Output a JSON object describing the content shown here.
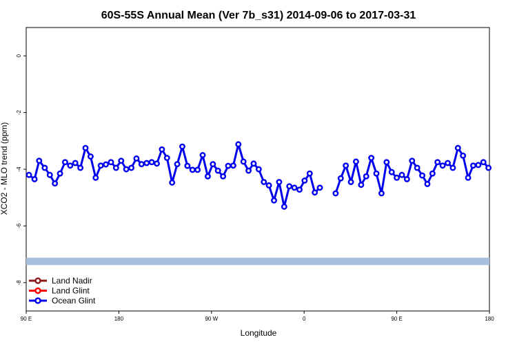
{
  "chart_data": {
    "type": "line",
    "title": "60S-55S Annual Mean (Ver 7b_s31)   2014-09-06 to 2017-03-31",
    "xlabel": "Longitude",
    "ylabel": "XCO2 - MLO trend (ppm)",
    "xlim": [
      0,
      100
    ],
    "ylim": [
      -9,
      1
    ],
    "x_ticks": [
      {
        "pos": 0,
        "label": "90 E"
      },
      {
        "pos": 20,
        "label": "180"
      },
      {
        "pos": 40,
        "label": "90 W"
      },
      {
        "pos": 60,
        "label": "0"
      },
      {
        "pos": 80,
        "label": "90 E"
      },
      {
        "pos": 100,
        "label": "180"
      }
    ],
    "y_ticks": [
      0,
      -2,
      -4,
      -6,
      -8
    ],
    "band": {
      "y_low": -7.38,
      "y_high": -7.12,
      "color": "#a8bfe0"
    },
    "legend_position": "bottom-left",
    "series": [
      {
        "name": "Land Nadir",
        "color": "#8b1a1a",
        "values": []
      },
      {
        "name": "Land Glint",
        "color": "#ff0000",
        "values": []
      },
      {
        "name": "Ocean Glint",
        "color": "#0000ee",
        "segments": [
          [
            [
              0.6,
              -4.2
            ],
            [
              1.8,
              -4.35
            ],
            [
              2.8,
              -3.7
            ],
            [
              4.0,
              -3.95
            ],
            [
              5.1,
              -4.2
            ],
            [
              6.2,
              -4.5
            ],
            [
              7.3,
              -4.15
            ],
            [
              8.4,
              -3.75
            ],
            [
              9.5,
              -3.87
            ],
            [
              10.6,
              -3.78
            ],
            [
              11.7,
              -3.95
            ],
            [
              12.8,
              -3.25
            ],
            [
              13.9,
              -3.55
            ],
            [
              15.0,
              -4.3
            ],
            [
              16.1,
              -3.87
            ],
            [
              17.2,
              -3.83
            ],
            [
              18.3,
              -3.75
            ],
            [
              19.4,
              -3.95
            ],
            [
              20.5,
              -3.7
            ],
            [
              21.6,
              -4.0
            ],
            [
              22.7,
              -3.95
            ],
            [
              23.8,
              -3.62
            ],
            [
              24.9,
              -3.82
            ],
            [
              26.0,
              -3.78
            ],
            [
              27.1,
              -3.75
            ],
            [
              28.2,
              -3.8
            ],
            [
              29.3,
              -3.3
            ],
            [
              30.4,
              -3.6
            ],
            [
              31.5,
              -4.47
            ],
            [
              32.6,
              -3.82
            ],
            [
              33.7,
              -3.2
            ],
            [
              34.8,
              -3.88
            ],
            [
              35.9,
              -4.02
            ],
            [
              37.0,
              -4.02
            ],
            [
              38.1,
              -3.5
            ],
            [
              39.2,
              -4.25
            ],
            [
              40.3,
              -3.82
            ],
            [
              41.4,
              -4.05
            ],
            [
              42.5,
              -4.25
            ],
            [
              43.6,
              -3.88
            ],
            [
              44.7,
              -3.87
            ],
            [
              45.8,
              -3.12
            ],
            [
              46.9,
              -3.73
            ],
            [
              48.0,
              -4.05
            ],
            [
              49.1,
              -3.8
            ],
            [
              50.2,
              -4.0
            ],
            [
              51.3,
              -4.45
            ],
            [
              52.4,
              -4.57
            ],
            [
              53.5,
              -5.1
            ],
            [
              54.6,
              -4.45
            ],
            [
              55.7,
              -5.32
            ],
            [
              56.8,
              -4.6
            ],
            [
              57.9,
              -4.65
            ],
            [
              59.0,
              -4.72
            ],
            [
              60.1,
              -4.4
            ],
            [
              61.2,
              -4.15
            ],
            [
              62.3,
              -4.82
            ],
            [
              63.4,
              -4.65
            ]
          ],
          [
            [
              66.8,
              -4.85
            ],
            [
              67.9,
              -4.32
            ],
            [
              69.0,
              -3.87
            ],
            [
              70.1,
              -4.45
            ],
            [
              71.2,
              -3.73
            ],
            [
              72.3,
              -4.55
            ],
            [
              73.4,
              -4.25
            ],
            [
              74.5,
              -3.6
            ],
            [
              75.6,
              -4.15
            ],
            [
              76.7,
              -4.85
            ],
            [
              77.8,
              -3.75
            ],
            [
              78.9,
              -4.1
            ],
            [
              80.0,
              -4.3
            ],
            [
              81.1,
              -4.2
            ],
            [
              82.2,
              -4.35
            ],
            [
              83.3,
              -3.7
            ],
            [
              84.4,
              -3.95
            ],
            [
              85.5,
              -4.22
            ],
            [
              86.6,
              -4.52
            ],
            [
              87.7,
              -4.15
            ],
            [
              88.8,
              -3.75
            ],
            [
              89.9,
              -3.87
            ],
            [
              91.0,
              -3.78
            ],
            [
              92.1,
              -3.95
            ],
            [
              93.2,
              -3.25
            ],
            [
              94.3,
              -3.52
            ],
            [
              95.4,
              -4.3
            ],
            [
              96.5,
              -3.87
            ],
            [
              97.6,
              -3.85
            ],
            [
              98.7,
              -3.75
            ],
            [
              99.8,
              -3.95
            ]
          ]
        ]
      }
    ]
  }
}
